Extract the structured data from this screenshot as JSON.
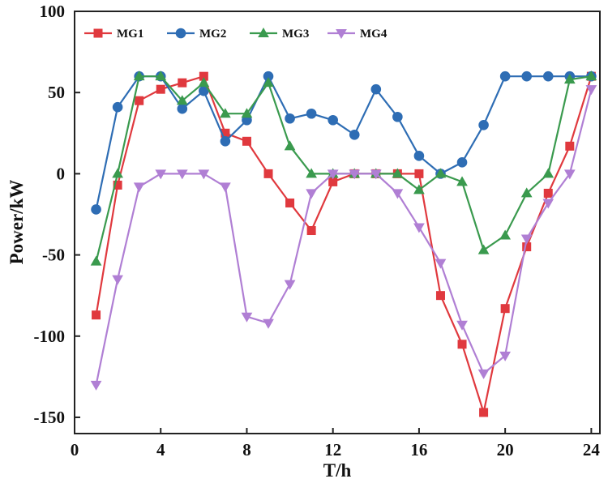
{
  "chart_data": {
    "type": "line",
    "title": "",
    "xlabel": "T/h",
    "ylabel": "Power/kW",
    "xlim": [
      0,
      24.4
    ],
    "ylim": [
      -160,
      100
    ],
    "xticks": [
      0,
      4,
      8,
      12,
      16,
      20,
      24
    ],
    "xtick_labels": [
      "0",
      "4",
      "8",
      "12",
      "16",
      "20",
      "24"
    ],
    "yticks": [
      100,
      50,
      0,
      -50,
      -100,
      -150
    ],
    "ytick_labels": [
      "100",
      "50",
      "0",
      "-50",
      "-100",
      "-150"
    ],
    "grid": false,
    "legend_position": "top",
    "x": [
      1,
      2,
      3,
      4,
      5,
      6,
      7,
      8,
      9,
      10,
      11,
      12,
      13,
      14,
      15,
      16,
      17,
      18,
      19,
      20,
      21,
      22,
      23,
      24
    ],
    "series": [
      {
        "name": "MG1",
        "color": "#e0393e",
        "marker": "square",
        "values": [
          -87,
          -7,
          45,
          52,
          56,
          60,
          25,
          20,
          0,
          -18,
          -35,
          -5,
          0,
          0,
          0,
          0,
          -75,
          -105,
          -147,
          -83,
          -45,
          -12,
          17,
          60
        ]
      },
      {
        "name": "MG2",
        "color": "#2e6db4",
        "marker": "circle",
        "values": [
          -22,
          41,
          60,
          60,
          40,
          51,
          20,
          33,
          60,
          34,
          37,
          33,
          24,
          52,
          35,
          11,
          0,
          7,
          30,
          60,
          60,
          60,
          60,
          60
        ]
      },
      {
        "name": "MG3",
        "color": "#3a9a4e",
        "marker": "triangle-up",
        "values": [
          -54,
          0,
          60,
          60,
          45,
          56,
          37,
          37,
          56,
          17,
          0,
          0,
          0,
          0,
          0,
          -10,
          0,
          -5,
          -47,
          -38,
          -12,
          0,
          58,
          60
        ]
      },
      {
        "name": "MG4",
        "color": "#b07fd4",
        "marker": "triangle-down",
        "values": [
          -130,
          -65,
          -8,
          0,
          0,
          0,
          -8,
          -88,
          -92,
          -68,
          -12,
          0,
          0,
          0,
          -12,
          -33,
          -55,
          -93,
          -123,
          -112,
          -40,
          -18,
          0,
          52
        ]
      }
    ]
  }
}
